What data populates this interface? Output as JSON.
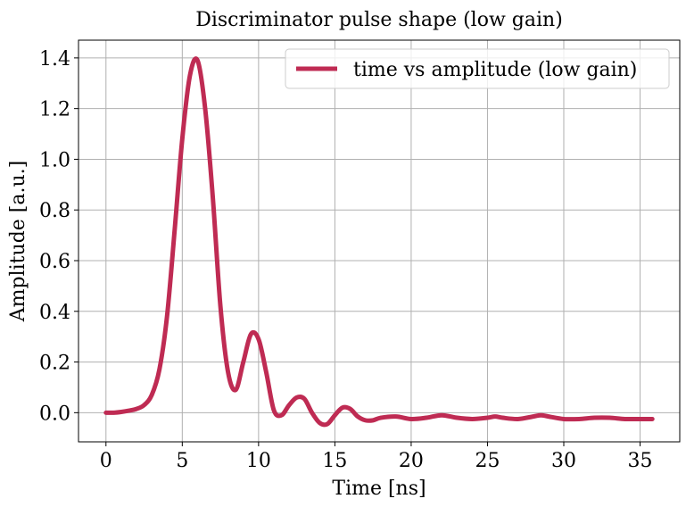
{
  "chart_data": {
    "type": "line",
    "title": "Discriminator pulse shape (low gain)",
    "xlabel": "Time [ns]",
    "ylabel": "Amplitude [a.u.]",
    "xlim": [
      -1.8,
      37.6
    ],
    "ylim": [
      -0.115,
      1.47
    ],
    "xticks": [
      0,
      5,
      10,
      15,
      20,
      25,
      30,
      35
    ],
    "yticks": [
      0.0,
      0.2,
      0.4,
      0.6,
      0.8,
      1.0,
      1.2,
      1.4
    ],
    "xtick_labels": [
      "0",
      "5",
      "10",
      "15",
      "20",
      "25",
      "30",
      "35"
    ],
    "ytick_labels": [
      "0.0",
      "0.2",
      "0.4",
      "0.6",
      "0.8",
      "1.0",
      "1.2",
      "1.4"
    ],
    "grid": true,
    "legend_position": "top-right",
    "series": [
      {
        "name": "time vs amplitude (low gain)",
        "color": "#bf2b53",
        "x": [
          0.0,
          0.5,
          1.0,
          1.5,
          2.0,
          2.5,
          3.0,
          3.5,
          4.0,
          4.5,
          5.0,
          5.5,
          6.0,
          6.5,
          7.0,
          7.5,
          8.0,
          8.5,
          9.0,
          9.5,
          10.0,
          10.5,
          11.0,
          11.5,
          12.0,
          12.5,
          13.0,
          13.5,
          14.0,
          14.5,
          15.0,
          15.5,
          16.0,
          16.5,
          17.0,
          17.5,
          18.0,
          19.0,
          20.0,
          21.0,
          22.0,
          23.0,
          24.0,
          25.0,
          25.5,
          26.0,
          27.0,
          28.0,
          28.5,
          29.0,
          30.0,
          31.0,
          32.0,
          33.0,
          34.0,
          35.0,
          35.8
        ],
        "values": [
          0.0,
          0.0,
          0.003,
          0.008,
          0.015,
          0.03,
          0.07,
          0.17,
          0.38,
          0.72,
          1.08,
          1.33,
          1.39,
          1.2,
          0.85,
          0.42,
          0.16,
          0.09,
          0.2,
          0.31,
          0.29,
          0.16,
          0.01,
          -0.01,
          0.03,
          0.06,
          0.055,
          0.0,
          -0.04,
          -0.045,
          -0.01,
          0.02,
          0.015,
          -0.015,
          -0.03,
          -0.03,
          -0.02,
          -0.015,
          -0.025,
          -0.02,
          -0.01,
          -0.02,
          -0.025,
          -0.02,
          -0.015,
          -0.02,
          -0.025,
          -0.015,
          -0.01,
          -0.015,
          -0.025,
          -0.025,
          -0.02,
          -0.02,
          -0.025,
          -0.025,
          -0.025
        ]
      }
    ]
  }
}
